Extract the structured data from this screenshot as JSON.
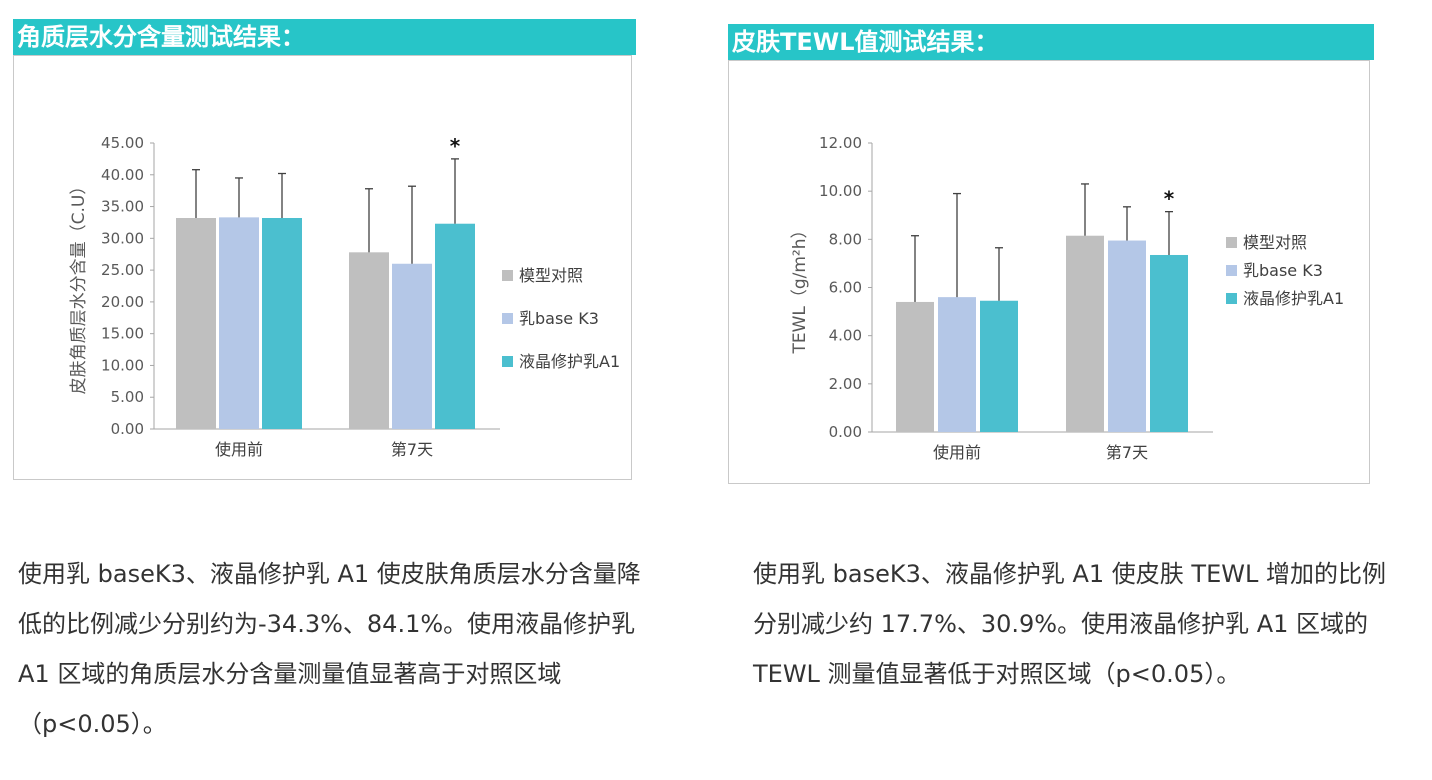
{
  "colors": {
    "title_bar": "#27c5c8",
    "series": [
      "#bfbfbf",
      "#b4c7e7",
      "#4bbfcf"
    ],
    "axis": "#a6a6a6",
    "error_bar": "#404040"
  },
  "chart_data": [
    {
      "type": "bar",
      "title": "角质层水分含量测试结果：",
      "ylabel": "皮肤角质层水分含量（C.U）",
      "xlabel": "",
      "categories": [
        "使用前",
        "第7天"
      ],
      "series": [
        {
          "name": "模型对照",
          "values": [
            33.2,
            27.8
          ],
          "errors": [
            7.6,
            10.0
          ]
        },
        {
          "name": "乳base K3",
          "values": [
            33.3,
            26.0
          ],
          "errors": [
            6.2,
            12.2
          ]
        },
        {
          "name": "液晶修护乳A1",
          "values": [
            33.2,
            32.3
          ],
          "errors": [
            7.0,
            10.2
          ]
        }
      ],
      "ylim": [
        0,
        45
      ],
      "ytick_step": 5,
      "ytick_labels": [
        "0.00",
        "5.00",
        "10.00",
        "15.00",
        "20.00",
        "25.00",
        "30.00",
        "35.00",
        "40.00",
        "45.00"
      ],
      "significance": "*",
      "legend_position": "right",
      "grid": false
    },
    {
      "type": "bar",
      "title": "皮肤TEWL值测试结果：",
      "ylabel": "TEWL（g/m²h）",
      "xlabel": "",
      "categories": [
        "使用前",
        "第7天"
      ],
      "series": [
        {
          "name": "模型对照",
          "values": [
            5.4,
            8.15
          ],
          "errors": [
            2.75,
            2.15
          ]
        },
        {
          "name": "乳base K3",
          "values": [
            5.6,
            7.95
          ],
          "errors": [
            4.3,
            1.4
          ]
        },
        {
          "name": "液晶修护乳A1",
          "values": [
            5.45,
            7.35
          ],
          "errors": [
            2.2,
            1.8
          ]
        }
      ],
      "ylim": [
        0,
        12
      ],
      "ytick_step": 2,
      "ytick_labels": [
        "0.00",
        "2.00",
        "4.00",
        "6.00",
        "8.00",
        "10.00",
        "12.00"
      ],
      "significance": "*",
      "legend_position": "right",
      "grid": false
    }
  ],
  "descriptions": {
    "moisture": [
      "使用乳 baseK3、液晶修护乳 A1 使皮肤角质层水分含量降",
      "低的比例减少分别约为-34.3%、84.1%。使用液晶修护乳",
      "A1 区域的角质层水分含量测量值显著高于对照区域",
      "（p<0.05）。"
    ],
    "tewl": [
      "使用乳 baseK3、液晶修护乳 A1 使皮肤 TEWL 增加的比例",
      "分别减少约 17.7%、30.9%。使用液晶修护乳 A1 区域的",
      "TEWL 测量值显著低于对照区域（p<0.05）。"
    ]
  }
}
